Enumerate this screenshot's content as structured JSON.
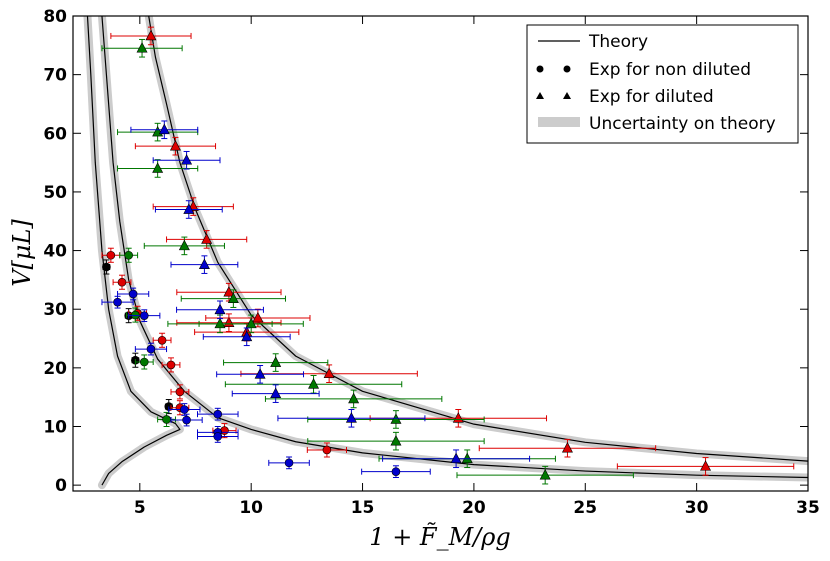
{
  "chart_data": {
    "type": "scatter",
    "title": "",
    "xlabel": "1 + F̃_M/ρg",
    "ylabel": "V[μL]",
    "xlim": [
      2,
      35
    ],
    "ylim": [
      -1,
      80
    ],
    "xticks": [
      5,
      10,
      15,
      20,
      25,
      30,
      35
    ],
    "yticks": [
      0,
      10,
      20,
      30,
      40,
      50,
      60,
      70,
      80
    ],
    "grid": false,
    "legend_position": "top-right",
    "legend": [
      {
        "key": "theory",
        "label": "Theory"
      },
      {
        "key": "nondiluted",
        "label": "Exp for non diluted"
      },
      {
        "key": "diluted",
        "label": "Exp for diluted"
      },
      {
        "key": "uncertainty",
        "label": "Uncertainty on theory"
      }
    ],
    "theory_curves": [
      {
        "name": "theory-1",
        "points": [
          [
            3.3,
            0
          ],
          [
            3.6,
            2
          ],
          [
            4.2,
            4
          ],
          [
            5.2,
            6.5
          ],
          [
            6.2,
            8.5
          ],
          [
            6.8,
            9.5
          ],
          [
            6.6,
            10.5
          ],
          [
            5.5,
            12.5
          ],
          [
            4.6,
            16
          ],
          [
            4.0,
            22
          ],
          [
            3.6,
            30
          ],
          [
            3.3,
            40
          ],
          [
            3.0,
            55
          ],
          [
            2.8,
            70
          ],
          [
            2.65,
            80
          ]
        ]
      },
      {
        "name": "theory-2",
        "points": [
          [
            3.3,
            80
          ],
          [
            3.5,
            70
          ],
          [
            3.8,
            55
          ],
          [
            4.1,
            45
          ],
          [
            4.5,
            35
          ],
          [
            5.0,
            28
          ],
          [
            5.8,
            21.5
          ],
          [
            7.0,
            16
          ],
          [
            8.5,
            11.5
          ],
          [
            10,
            9.5
          ],
          [
            12,
            7.4
          ],
          [
            15,
            5.5
          ],
          [
            20,
            3.5
          ],
          [
            25,
            2.4
          ],
          [
            30,
            1.7
          ],
          [
            35,
            1.3
          ]
        ]
      },
      {
        "name": "theory-3",
        "points": [
          [
            5.4,
            80
          ],
          [
            5.7,
            73
          ],
          [
            6.2,
            65
          ],
          [
            6.8,
            55
          ],
          [
            7.5,
            47
          ],
          [
            8.5,
            38
          ],
          [
            10,
            29
          ],
          [
            12,
            22
          ],
          [
            15,
            16
          ],
          [
            20,
            10.4
          ],
          [
            25,
            7.3
          ],
          [
            30,
            5.4
          ],
          [
            35,
            4.1
          ]
        ]
      }
    ],
    "series": [
      {
        "name": "non-diluted-black",
        "marker": "circle",
        "color": "#000000",
        "points": [
          [
            3.5,
            37.2
          ],
          [
            4.5,
            28.9
          ],
          [
            4.8,
            21.3
          ],
          [
            6.3,
            13.4
          ]
        ],
        "xerr": 0.15,
        "yerr": 1.2
      },
      {
        "name": "non-diluted-red",
        "marker": "circle",
        "color": "#dd0000",
        "points": [
          [
            3.7,
            39.2
          ],
          [
            4.2,
            34.6
          ],
          [
            4.9,
            29.3
          ],
          [
            6.0,
            24.7
          ],
          [
            6.4,
            20.5
          ],
          [
            6.8,
            15.9
          ],
          [
            6.8,
            13.2
          ],
          [
            8.8,
            9.3
          ],
          [
            13.4,
            6.0
          ]
        ],
        "xerr": 0.4,
        "yerr": 1.2
      },
      {
        "name": "non-diluted-green",
        "marker": "circle",
        "color": "#007700",
        "points": [
          [
            4.5,
            39.2
          ],
          [
            4.8,
            29.0
          ],
          [
            5.2,
            21.0
          ],
          [
            6.2,
            11.2
          ]
        ],
        "xerr": 0.4,
        "yerr": 1.2
      },
      {
        "name": "non-diluted-blue",
        "marker": "circle",
        "color": "#0000cc",
        "points": [
          [
            4.0,
            31.2
          ],
          [
            4.7,
            32.6
          ],
          [
            5.2,
            28.9
          ],
          [
            5.5,
            23.2
          ],
          [
            7.0,
            12.9
          ],
          [
            7.1,
            11.1
          ],
          [
            8.5,
            12.1
          ],
          [
            8.5,
            9.0
          ],
          [
            8.5,
            8.3
          ],
          [
            11.7,
            3.8
          ],
          [
            16.5,
            2.3
          ]
        ],
        "xerr": 0.7,
        "yerr": 1.0
      },
      {
        "name": "diluted-red",
        "marker": "triangle",
        "color": "#dd0000",
        "points": [
          [
            5.5,
            76.6
          ],
          [
            6.6,
            57.8
          ],
          [
            7.4,
            47.5
          ],
          [
            8.0,
            41.9
          ],
          [
            9.0,
            32.9
          ],
          [
            9.0,
            27.7
          ],
          [
            9.8,
            26.1
          ],
          [
            10.3,
            28.5
          ],
          [
            13.5,
            19.0
          ],
          [
            19.3,
            11.4
          ],
          [
            24.2,
            6.3
          ],
          [
            30.4,
            3.2
          ]
        ],
        "xerr": 1.8,
        "yerr": 1.5
      },
      {
        "name": "diluted-green",
        "marker": "triangle",
        "color": "#007700",
        "points": [
          [
            5.1,
            74.5
          ],
          [
            5.8,
            60.2
          ],
          [
            5.8,
            54.0
          ],
          [
            7.0,
            40.8
          ],
          [
            9.2,
            31.8
          ],
          [
            8.6,
            27.5
          ],
          [
            10.0,
            27.5
          ],
          [
            11.1,
            20.9
          ],
          [
            12.8,
            17.2
          ],
          [
            14.6,
            14.7
          ],
          [
            16.5,
            11.2
          ],
          [
            16.5,
            7.5
          ],
          [
            19.7,
            4.5
          ],
          [
            23.2,
            1.7
          ]
        ],
        "xerr": 1.8,
        "yerr": 1.5
      },
      {
        "name": "diluted-blue",
        "marker": "triangle",
        "color": "#0000cc",
        "points": [
          [
            6.1,
            60.6
          ],
          [
            7.1,
            55.4
          ],
          [
            7.2,
            47.0
          ],
          [
            7.9,
            37.6
          ],
          [
            8.6,
            29.9
          ],
          [
            9.8,
            25.3
          ],
          [
            10.4,
            18.9
          ],
          [
            11.1,
            15.6
          ],
          [
            14.5,
            11.4
          ],
          [
            19.2,
            4.5
          ]
        ],
        "xerr": 1.5,
        "yerr": 1.5
      }
    ]
  }
}
